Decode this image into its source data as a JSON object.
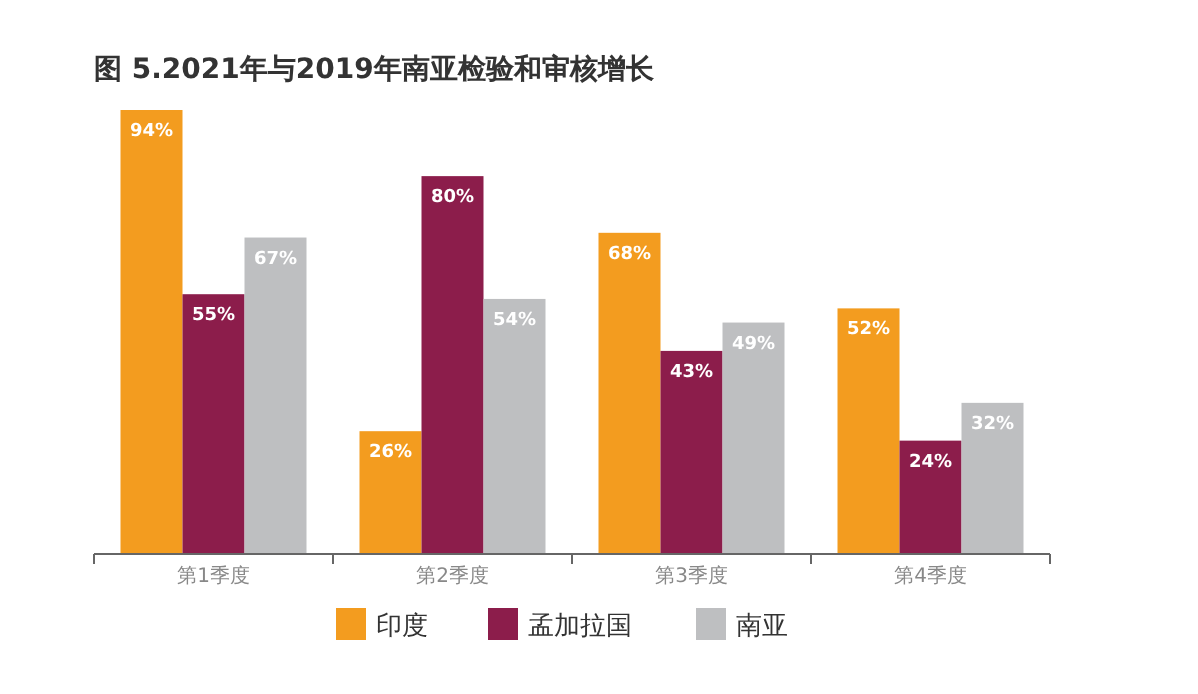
{
  "chart_data": {
    "type": "bar",
    "title": "图 5.2021年与2019年南亚检验和审核增长",
    "categories": [
      "第1季度",
      "第2季度",
      "第3季度",
      "第4季度"
    ],
    "series": [
      {
        "name": "印度",
        "color": "#f39c1f",
        "values": [
          94,
          26,
          68,
          52
        ],
        "value_labels": [
          "94%",
          "26%",
          "68%",
          "52%"
        ]
      },
      {
        "name": "孟加拉国",
        "color": "#8c1d4b",
        "values": [
          55,
          80,
          43,
          24
        ],
        "value_labels": [
          "55%",
          "80%",
          "43%",
          "24%"
        ]
      },
      {
        "name": "南亚",
        "color": "#bebfc1",
        "values": [
          67,
          54,
          49,
          32
        ],
        "value_labels": [
          "67%",
          "54%",
          "49%",
          "32%"
        ]
      }
    ],
    "legend": "bottom"
  }
}
